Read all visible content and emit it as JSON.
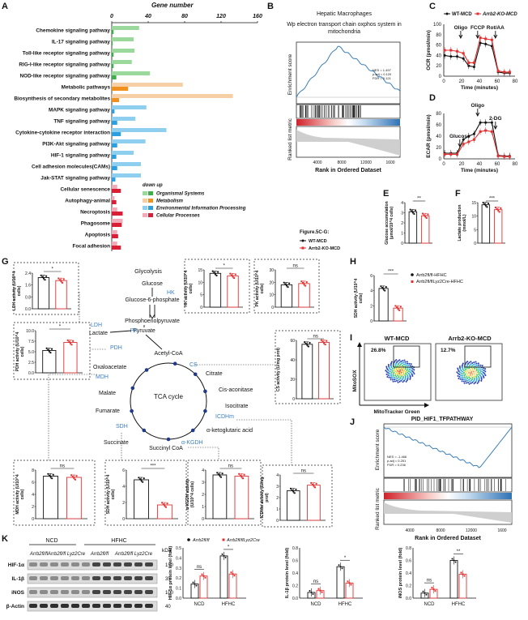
{
  "panels": {
    "A": {
      "letter": "A",
      "xlabel": "Gene number",
      "ticks": [
        "0",
        "40",
        "80",
        "120",
        "160"
      ],
      "pathways": [
        "Chemokine signaling pathway",
        "IL-17 signaling pathway",
        "Toll-like receptor signaling pathway",
        "RIG-I-like receptor signaling pathway",
        "NOD-like receptor signaling pathway",
        "Metabolic pathways",
        "Biosynthesis of secondary metabolites",
        "MAPK signaling pathway",
        "TNF signaling pathway",
        "Cytokine-cytokine receptor interaction",
        "PI3K-Akt signaling pathway",
        "HIF-1 signaling pathway",
        "Cell adhesion molecules(CAMs)",
        "Jak-STAT signaling pathway",
        "Cellular senescence",
        "Autophagy-animal",
        "Necroptosis",
        "Phagosome",
        "Apoptosis",
        "Focal adhesion"
      ],
      "legend_title": "down up",
      "legend": [
        "Organismal Systems",
        "Metabolism",
        "Environmental Information Processing",
        "Cellular Processes"
      ],
      "colors": {
        "org_light": "#9bd89b",
        "org_dark": "#3cae4a",
        "met_light": "#f7cfa6",
        "met_dark": "#f0901e",
        "env_light": "#8ecff0",
        "env_dark": "#2b9fe0",
        "cell_light": "#f2a9b8",
        "cell_dark": "#d81f35"
      }
    },
    "B": {
      "letter": "B",
      "header": "Hepatic Macrophages",
      "title": "Wp electron transport chain oxphos system in mitochondria",
      "ylabel_top": "Enrichment score",
      "ylabel_bottom": "Ranked list metric",
      "xlabel": "Rank in Ordered Dataset",
      "stats": [
        "NES = 1.497",
        "p.adj = 0.120",
        "FDR = 0.121"
      ],
      "xticks": [
        "4000",
        "8000",
        "12000",
        "1600"
      ]
    },
    "C": {
      "letter": "C",
      "legend": [
        "WT-MCD",
        "Arrb2-KO-MCD"
      ],
      "ylabel": "OCR (pmol/min)",
      "xlabel": "Time (minutes)",
      "annot": [
        "Oligo",
        "FCCP",
        "Rot/AA"
      ],
      "yticks": [
        "0",
        "20",
        "40",
        "60",
        "80",
        "100"
      ],
      "xticks": [
        "0",
        "20",
        "40",
        "60",
        "80"
      ]
    },
    "D": {
      "letter": "D",
      "ylabel": "ECAR (pmol/min)",
      "xlabel": "Time (minutes)",
      "annot": [
        "Glucose",
        "Oligo",
        "2-DG"
      ],
      "yticks": [
        "0",
        "20",
        "40",
        "60",
        "80"
      ],
      "xticks": [
        "0",
        "20",
        "40",
        "60",
        "80"
      ]
    },
    "E": {
      "letter": "E",
      "ylabel": "Glucose accumulation (μmol/10^4 cells)",
      "yticks": [
        "0",
        "1",
        "2",
        "3",
        "4"
      ],
      "sig": "**"
    },
    "F": {
      "letter": "F",
      "ylabel": "Lactate production (mmol/L)",
      "yticks": [
        "0",
        "5",
        "10",
        "15"
      ],
      "sig": "***"
    },
    "fig_legend": {
      "title": "Figure.5C-G:",
      "items": [
        "WT-MCD",
        "Arrb2-KO-MCD"
      ]
    },
    "G": {
      "letter": "G",
      "metabolites": [
        "Glycolysis",
        "Glucose",
        "Glucose-6-phosphate",
        "Phosphoenolpyruvate",
        "Pyruvate",
        "Lactate",
        "Acetyl-CoA",
        "Citrate",
        "Cis-aconitase",
        "Isocitrate",
        "α-ketoglutaric acid",
        "Succinyl CoA",
        "Succinate",
        "Fumarate",
        "Malate",
        "Oxaloacetate",
        "TCA cycle"
      ],
      "enzymes": [
        "HK",
        "PK",
        "LDH",
        "PDH",
        "CS",
        "ICDHm",
        "α-KGDH",
        "SDH",
        "MDH"
      ],
      "charts": [
        {
          "ylabel": "LDH activity (U/10^4 cells)",
          "yticks": [
            "0.0",
            "0.8",
            "1.6",
            "2.4"
          ],
          "sig": "*"
        },
        {
          "ylabel": "HK activity (U/10^4 cells)",
          "yticks": [
            "0",
            "5",
            "10",
            "15"
          ],
          "sig": "*"
        },
        {
          "ylabel": "PK activity (U/10^4 cells)",
          "yticks": [
            "0",
            "10",
            "20",
            "30"
          ],
          "sig": "ns"
        },
        {
          "ylabel": "PDH activity (U/10^4 cells)",
          "yticks": [
            "0.0",
            "2.5",
            "5.0",
            "7.5",
            "10.0"
          ],
          "sig": "*"
        },
        {
          "ylabel": "CS activity (U/mg prot)",
          "yticks": [
            "0",
            "20",
            "40",
            "60"
          ],
          "sig": "ns"
        },
        {
          "ylabel": "MDH activity (U/10^4 cells)",
          "yticks": [
            "0",
            "2",
            "4",
            "6",
            "8"
          ],
          "sig": "ns"
        },
        {
          "ylabel": "SDH activity (U/10^4 cells)",
          "yticks": [
            "0",
            "2",
            "4",
            "6"
          ],
          "sig": "***"
        },
        {
          "ylabel": "α-KGDH activity (U/10^4 cells)",
          "yticks": [
            "0",
            "1",
            "2",
            "3",
            "4"
          ],
          "sig": "ns"
        },
        {
          "ylabel": "ICDHm activity (U/mg prot)",
          "yticks": [
            "0",
            "1",
            "2",
            "3",
            "4"
          ],
          "sig": "ns"
        }
      ]
    },
    "H": {
      "letter": "H",
      "ylabel": "SDH activity (U/10^4 cells)",
      "yticks": [
        "0",
        "2",
        "4",
        "6"
      ],
      "sig": "***",
      "legend": [
        "Arrb2fl/fl-HFHC",
        "Arrb2fl/flLyz2Cre-HFHC"
      ]
    },
    "I": {
      "letter": "I",
      "groups": [
        "WT-MCD",
        "Arrb2-KO-MCD"
      ],
      "pct": [
        "26.8%",
        "12.7%"
      ],
      "ylabel": "MitoSOX",
      "xlabel": "MitoTracker Green"
    },
    "J": {
      "letter": "J",
      "title": "PID_HIF1_TFPATHWAY",
      "ylabel_top": "Enrichment score",
      "ylabel_bottom": "Ranked list metric",
      "xlabel": "Rank in Ordered Dataset",
      "stats": [
        "NES = -1.466",
        "p.adj = 0.251",
        "FDR = 0.236"
      ],
      "xticks": [
        "4000",
        "8000",
        "12000",
        "1600"
      ]
    },
    "K": {
      "letter": "K",
      "groups": [
        "NCD",
        "HFHC"
      ],
      "lanes": [
        "Arrb2fl/fl",
        "Arrb2fl/fl Lyz2Cre",
        "Arrb2fl/fl",
        "Arrb2fl/fl Lyz2Cre"
      ],
      "proteins": [
        "HIF-1α",
        "IL-1β",
        "iNOS",
        "β-Actin"
      ],
      "kda_label": "kDa",
      "kda": [
        "150",
        "35",
        "100",
        "40"
      ],
      "legend": [
        "Arrb2fl/fl",
        "Arrb2fl/flLyz2Cre"
      ],
      "charts": [
        {
          "ylabel": "HIF-1α protein level (fold)",
          "yticks": [
            "0.0",
            "0.1",
            "0.2",
            "0.3",
            "0.4",
            "0.5"
          ],
          "sig": [
            "ns",
            "*"
          ]
        },
        {
          "ylabel": "IL-1β protein level (fold)",
          "yticks": [
            "0.0",
            "0.2",
            "0.4",
            "0.6",
            "0.8"
          ],
          "sig": [
            "ns",
            "*"
          ]
        },
        {
          "ylabel": "iNOS protein level (fold)",
          "yticks": [
            "0.0",
            "0.2",
            "0.4",
            "0.6",
            "0.8"
          ],
          "sig": [
            "ns",
            "**"
          ]
        }
      ],
      "xcats": [
        "NCD",
        "HFHC"
      ]
    }
  },
  "chart_data": [
    {
      "type": "bar",
      "panel": "A",
      "title": "",
      "xlabel": "Gene number",
      "categories": [
        "Chemokine signaling pathway",
        "IL-17 signaling pathway",
        "Toll-like receptor signaling pathway",
        "RIG-I-like receptor signaling pathway",
        "NOD-like receptor signaling pathway",
        "Metabolic pathways",
        "Biosynthesis of secondary metabolites",
        "MAPK signaling pathway",
        "TNF signaling pathway",
        "Cytokine-cytokine receptor interaction",
        "PI3K-Akt signaling pathway",
        "HIF-1 signaling pathway",
        "Cell adhesion molecules(CAMs)",
        "Jak-STAT signaling pathway",
        "Cellular senescence",
        "Autophagy-animal",
        "Necroptosis",
        "Phagosome",
        "Apoptosis",
        "Focal adhesion"
      ],
      "series": [
        {
          "name": "down",
          "values": [
            2,
            1,
            2,
            2,
            5,
            18,
            8,
            3,
            6,
            10,
            6,
            5,
            6,
            4,
            10,
            5,
            12,
            11,
            7,
            10
          ]
        },
        {
          "name": "up",
          "values": [
            30,
            24,
            25,
            22,
            42,
            78,
            133,
            38,
            26,
            60,
            37,
            24,
            32,
            32,
            6,
            3,
            6,
            12,
            6,
            6
          ]
        }
      ],
      "xlim": [
        0,
        160
      ]
    },
    {
      "type": "line",
      "panel": "C",
      "xlabel": "Time (minutes)",
      "ylabel": "OCR (pmol/min)",
      "x": [
        1,
        8,
        15,
        22,
        28,
        34,
        41,
        47,
        54,
        61,
        68,
        74
      ],
      "series": [
        {
          "name": "WT-MCD",
          "values": [
            40,
            38,
            38,
            34,
            20,
            18,
            64,
            62,
            58,
            8,
            6,
            6
          ]
        },
        {
          "name": "Arrb2-KO-MCD",
          "values": [
            50,
            50,
            48,
            44,
            26,
            26,
            74,
            72,
            70,
            10,
            8,
            8
          ]
        }
      ],
      "ylim": [
        0,
        100
      ]
    },
    {
      "type": "line",
      "panel": "D",
      "xlabel": "Time (minutes)",
      "ylabel": "ECAR (pmol/min)",
      "x": [
        1,
        8,
        15,
        22,
        28,
        34,
        41,
        47,
        54,
        61,
        68,
        74
      ],
      "series": [
        {
          "name": "WT-MCD",
          "values": [
            10,
            10,
            10,
            34,
            40,
            44,
            64,
            64,
            64,
            6,
            5,
            5
          ]
        },
        {
          "name": "Arrb2-KO-MCD",
          "values": [
            8,
            8,
            8,
            26,
            30,
            34,
            48,
            50,
            48,
            5,
            4,
            4
          ]
        }
      ],
      "ylim": [
        0,
        80
      ]
    },
    {
      "type": "bar",
      "panel": "E",
      "ylabel": "Glucose accumulation",
      "categories": [
        "WT-MCD",
        "Arrb2-KO-MCD"
      ],
      "values": [
        3.1,
        2.7
      ],
      "ylim": [
        0,
        4
      ]
    },
    {
      "type": "bar",
      "panel": "F",
      "ylabel": "Lactate production (mmol/L)",
      "categories": [
        "WT-MCD",
        "Arrb2-KO-MCD"
      ],
      "values": [
        14.2,
        12.4
      ],
      "ylim": [
        0,
        15
      ]
    },
    {
      "type": "bar",
      "panel": "G-LDH",
      "categories": [
        "WT-MCD",
        "Arrb2-KO-MCD"
      ],
      "values": [
        2.1,
        1.9
      ],
      "ylim": [
        0,
        2.4
      ]
    },
    {
      "type": "bar",
      "panel": "G-HK",
      "categories": [
        "WT-MCD",
        "Arrb2-KO-MCD"
      ],
      "values": [
        13.6,
        12.6
      ],
      "ylim": [
        0,
        15
      ]
    },
    {
      "type": "bar",
      "panel": "G-PK",
      "categories": [
        "WT-MCD",
        "Arrb2-KO-MCD"
      ],
      "values": [
        18,
        19
      ],
      "ylim": [
        0,
        30
      ]
    },
    {
      "type": "bar",
      "panel": "G-PDH",
      "categories": [
        "WT-MCD",
        "Arrb2-KO-MCD"
      ],
      "values": [
        5.3,
        7.2
      ],
      "ylim": [
        0,
        10
      ]
    },
    {
      "type": "bar",
      "panel": "G-CS",
      "categories": [
        "WT-MCD",
        "Arrb2-KO-MCD"
      ],
      "values": [
        56,
        58
      ],
      "ylim": [
        0,
        60
      ]
    },
    {
      "type": "bar",
      "panel": "G-MDH",
      "categories": [
        "WT-MCD",
        "Arrb2-KO-MCD"
      ],
      "values": [
        7,
        6.8
      ],
      "ylim": [
        0,
        8
      ]
    },
    {
      "type": "bar",
      "panel": "G-SDH",
      "categories": [
        "WT-MCD",
        "Arrb2-KO-MCD"
      ],
      "values": [
        4.8,
        1.7
      ],
      "ylim": [
        0,
        6
      ]
    },
    {
      "type": "bar",
      "panel": "G-aKGDH",
      "categories": [
        "WT-MCD",
        "Arrb2-KO-MCD"
      ],
      "values": [
        3.6,
        3.5
      ],
      "ylim": [
        0,
        4
      ]
    },
    {
      "type": "bar",
      "panel": "G-ICDHm",
      "categories": [
        "WT-MCD",
        "Arrb2-KO-MCD"
      ],
      "values": [
        2.6,
        3.1
      ],
      "ylim": [
        0,
        4
      ]
    },
    {
      "type": "bar",
      "panel": "H",
      "categories": [
        "Arrb2fl/fl-HFHC",
        "Arrb2fl/flLyz2Cre-HFHC"
      ],
      "values": [
        4.3,
        1.7
      ],
      "ylim": [
        0,
        6
      ]
    },
    {
      "type": "bar",
      "panel": "K-HIF1a",
      "categories": [
        "NCD",
        "HFHC"
      ],
      "series": [
        {
          "name": "Arrb2fl/fl",
          "values": [
            0.14,
            0.42
          ]
        },
        {
          "name": "Arrb2fl/flLyz2Cre",
          "values": [
            0.22,
            0.24
          ]
        }
      ],
      "ylim": [
        0,
        0.5
      ]
    },
    {
      "type": "bar",
      "panel": "K-IL1b",
      "categories": [
        "NCD",
        "HFHC"
      ],
      "series": [
        {
          "name": "Arrb2fl/fl",
          "values": [
            0.09,
            0.5
          ]
        },
        {
          "name": "Arrb2fl/flLyz2Cre",
          "values": [
            0.12,
            0.24
          ]
        }
      ],
      "ylim": [
        0,
        0.8
      ]
    },
    {
      "type": "bar",
      "panel": "K-iNOS",
      "categories": [
        "NCD",
        "HFHC"
      ],
      "series": [
        {
          "name": "Arrb2fl/fl",
          "values": [
            0.08,
            0.6
          ]
        },
        {
          "name": "Arrb2fl/flLyz2Cre",
          "values": [
            0.14,
            0.38
          ]
        }
      ],
      "ylim": [
        0,
        0.8
      ]
    }
  ]
}
